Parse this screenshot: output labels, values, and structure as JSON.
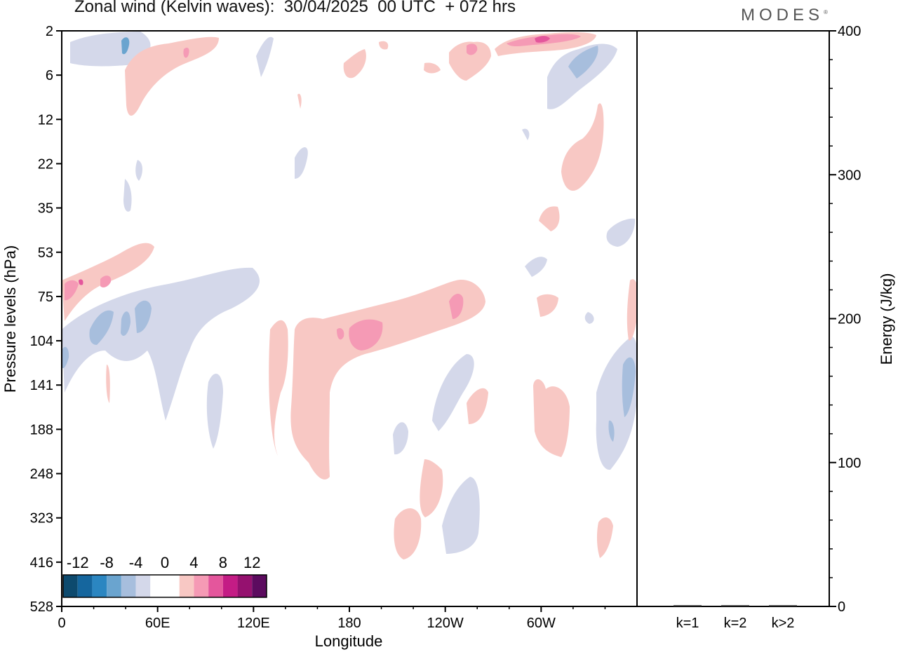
{
  "title": "Zonal wind (Kelvin waves):  30/04/2025  00 UTC  + 072 hrs",
  "brand": "MODES",
  "chart_data": {
    "type": "heatmap",
    "xlabel": "Longitude",
    "ylabel": "Pressure levels (hPa)",
    "x_ticks": [
      "0",
      "60E",
      "120E",
      "180",
      "120W",
      "60W"
    ],
    "x_tick_values": [
      0,
      60,
      120,
      180,
      240,
      300
    ],
    "xlim": [
      0,
      360
    ],
    "y_ticks": [
      "2",
      "6",
      "12",
      "22",
      "35",
      "53",
      "75",
      "104",
      "141",
      "188",
      "248",
      "323",
      "416",
      "528"
    ],
    "colorbar": {
      "labels": [
        "-12",
        "-8",
        "-4",
        "0",
        "4",
        "8",
        "12"
      ],
      "colors": [
        "#0d4a6e",
        "#15669e",
        "#2b86c1",
        "#6aa4cf",
        "#a7bedd",
        "#d4d8ea",
        "#ffffff",
        "#ffffff",
        "#f8c8c4",
        "#f59ab5",
        "#e4569c",
        "#c41c85",
        "#95116f",
        "#5c0b5f"
      ]
    },
    "positive_color": "#f8c8c4",
    "negative_color": "#d4d8ea",
    "anomalies": [
      {
        "lon": 18,
        "level": "2.8",
        "value": -6,
        "c": "#a7bedd"
      },
      {
        "lon": 80,
        "level": "4.5",
        "value": 6,
        "c": "#f59ab5"
      },
      {
        "lon": 40,
        "level": "9",
        "value": 4,
        "c": "#f8c8c4"
      },
      {
        "lon": 258,
        "level": "3.8",
        "value": 6,
        "c": "#f59ab5"
      },
      {
        "lon": 285,
        "level": "2.6",
        "value": 8,
        "c": "#e4569c"
      },
      {
        "lon": 330,
        "level": "5",
        "value": -8,
        "c": "#6aa4cf"
      },
      {
        "lon": 15,
        "level": "62",
        "value": 6,
        "c": "#f59ab5"
      },
      {
        "lon": 22,
        "level": "95",
        "value": -6,
        "c": "#6aa4cf"
      },
      {
        "lon": 40,
        "level": "95",
        "value": -6,
        "c": "#6aa4cf"
      },
      {
        "lon": 185,
        "level": "98",
        "value": 6,
        "c": "#f59ab5"
      },
      {
        "lon": 250,
        "level": "88",
        "value": 6,
        "c": "#f59ab5"
      },
      {
        "lon": 170,
        "level": "150",
        "value": 4,
        "c": "#f8c8c4"
      },
      {
        "lon": 355,
        "level": "150",
        "value": -6,
        "c": "#6aa4cf"
      },
      {
        "lon": 300,
        "level": "180",
        "value": 4,
        "c": "#f8c8c4"
      },
      {
        "lon": 240,
        "level": "290",
        "value": -4,
        "c": "#d4d8ea"
      }
    ],
    "energy_panel": {
      "ylabel": "Energy (J/kg)",
      "ylim": [
        0,
        400
      ],
      "y_ticks": [
        "0",
        "100",
        "200",
        "300",
        "400"
      ],
      "categories": [
        "k=1",
        "k=2",
        "k>2"
      ],
      "values": [
        0,
        0,
        0
      ]
    }
  }
}
